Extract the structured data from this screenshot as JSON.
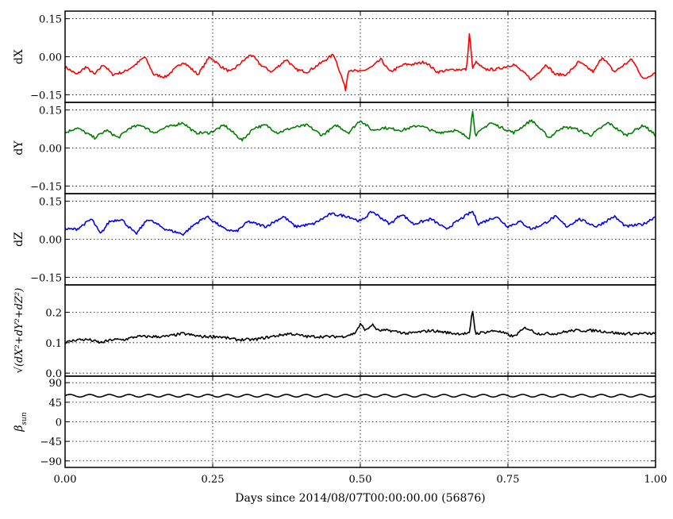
{
  "figure": {
    "xlabel": "Days since 2014/08/07T00:00:00.00 (56876)",
    "xticks": [
      "0.00",
      "0.25",
      "0.50",
      "0.75",
      "1.00"
    ],
    "xlim": [
      0.0,
      1.0
    ]
  },
  "chart_data": [
    {
      "type": "line",
      "ylabel": "dX",
      "ylim": [
        -0.18,
        0.18
      ],
      "yticks": [
        -0.15,
        0.0,
        0.15
      ],
      "ytick_labels": [
        "−0.15",
        "0.00",
        "0.15"
      ],
      "grid": true,
      "color": "#ff0000",
      "series": [
        {
          "x": [
            0.0,
            0.02,
            0.035,
            0.05,
            0.065,
            0.08,
            0.1,
            0.12,
            0.135,
            0.15,
            0.17,
            0.2,
            0.225,
            0.245,
            0.265,
            0.28,
            0.3,
            0.315,
            0.33,
            0.35,
            0.375,
            0.39,
            0.41,
            0.43,
            0.455,
            0.47,
            0.475,
            0.48,
            0.5,
            0.52,
            0.535,
            0.55,
            0.575,
            0.59,
            0.61,
            0.63,
            0.66,
            0.68,
            0.685,
            0.69,
            0.695,
            0.71,
            0.73,
            0.76,
            0.79,
            0.815,
            0.83,
            0.85,
            0.87,
            0.895,
            0.91,
            0.93,
            0.96,
            0.98,
            1.0
          ],
          "y": [
            -0.04,
            -0.07,
            -0.04,
            -0.07,
            -0.03,
            -0.07,
            -0.06,
            -0.03,
            0.0,
            -0.07,
            -0.08,
            -0.02,
            -0.07,
            0.0,
            -0.04,
            -0.06,
            -0.02,
            0.01,
            -0.03,
            -0.06,
            -0.01,
            -0.05,
            -0.06,
            -0.03,
            0.01,
            -0.09,
            -0.13,
            -0.05,
            -0.06,
            -0.04,
            -0.01,
            -0.06,
            -0.03,
            -0.03,
            -0.02,
            -0.06,
            -0.05,
            -0.05,
            0.1,
            -0.05,
            -0.02,
            -0.05,
            -0.05,
            -0.03,
            -0.09,
            -0.03,
            -0.07,
            -0.07,
            -0.02,
            -0.06,
            0.0,
            -0.06,
            -0.01,
            -0.09,
            -0.06
          ]
        }
      ]
    },
    {
      "type": "line",
      "ylabel": "dY",
      "ylim": [
        -0.18,
        0.18
      ],
      "yticks": [
        -0.15,
        0.0,
        0.15
      ],
      "ytick_labels": [
        "−0.15",
        "0.00",
        "0.15"
      ],
      "grid": true,
      "color": "#007f00",
      "series": [
        {
          "x": [
            0.0,
            0.02,
            0.035,
            0.05,
            0.07,
            0.09,
            0.11,
            0.13,
            0.15,
            0.17,
            0.2,
            0.22,
            0.245,
            0.27,
            0.3,
            0.32,
            0.34,
            0.36,
            0.385,
            0.41,
            0.435,
            0.46,
            0.48,
            0.5,
            0.52,
            0.54,
            0.57,
            0.6,
            0.63,
            0.66,
            0.685,
            0.69,
            0.695,
            0.72,
            0.76,
            0.79,
            0.82,
            0.84,
            0.86,
            0.89,
            0.92,
            0.95,
            0.98,
            1.0
          ],
          "y": [
            0.06,
            0.08,
            0.06,
            0.04,
            0.07,
            0.04,
            0.08,
            0.09,
            0.06,
            0.08,
            0.1,
            0.06,
            0.06,
            0.09,
            0.03,
            0.08,
            0.09,
            0.06,
            0.08,
            0.09,
            0.05,
            0.09,
            0.06,
            0.11,
            0.07,
            0.08,
            0.07,
            0.09,
            0.06,
            0.07,
            0.04,
            0.15,
            0.05,
            0.1,
            0.06,
            0.11,
            0.04,
            0.08,
            0.08,
            0.05,
            0.1,
            0.05,
            0.09,
            0.05
          ]
        }
      ]
    },
    {
      "type": "line",
      "ylabel": "dZ",
      "ylim": [
        -0.18,
        0.18
      ],
      "yticks": [
        -0.15,
        0.0,
        0.15
      ],
      "ytick_labels": [
        "−0.15",
        "0.00",
        "0.15"
      ],
      "grid": true,
      "color": "#0000ff",
      "series": [
        {
          "x": [
            0.0,
            0.02,
            0.045,
            0.06,
            0.075,
            0.095,
            0.12,
            0.14,
            0.17,
            0.2,
            0.22,
            0.24,
            0.27,
            0.29,
            0.31,
            0.34,
            0.37,
            0.39,
            0.42,
            0.45,
            0.48,
            0.5,
            0.52,
            0.55,
            0.57,
            0.59,
            0.62,
            0.645,
            0.67,
            0.69,
            0.7,
            0.73,
            0.75,
            0.77,
            0.79,
            0.81,
            0.83,
            0.85,
            0.87,
            0.9,
            0.93,
            0.95,
            0.98,
            1.0
          ],
          "y": [
            0.04,
            0.04,
            0.08,
            0.02,
            0.07,
            0.08,
            0.02,
            0.08,
            0.04,
            0.02,
            0.06,
            0.09,
            0.04,
            0.03,
            0.07,
            0.05,
            0.09,
            0.05,
            0.06,
            0.1,
            0.09,
            0.07,
            0.11,
            0.06,
            0.1,
            0.06,
            0.08,
            0.04,
            0.08,
            0.11,
            0.06,
            0.09,
            0.05,
            0.07,
            0.04,
            0.06,
            0.09,
            0.05,
            0.08,
            0.05,
            0.09,
            0.05,
            0.06,
            0.09
          ]
        }
      ]
    },
    {
      "type": "line",
      "ylabel": "√(dX²+dY²+dZ²)",
      "ylim": [
        -0.01,
        0.29
      ],
      "yticks": [
        0.0,
        0.1,
        0.2
      ],
      "ytick_labels": [
        "0.0",
        "0.1",
        "0.2"
      ],
      "grid": true,
      "color": "#000000",
      "series": [
        {
          "x": [
            0.0,
            0.02,
            0.04,
            0.06,
            0.08,
            0.1,
            0.12,
            0.14,
            0.17,
            0.2,
            0.23,
            0.26,
            0.29,
            0.32,
            0.35,
            0.38,
            0.41,
            0.44,
            0.47,
            0.49,
            0.5,
            0.51,
            0.52,
            0.53,
            0.55,
            0.58,
            0.62,
            0.66,
            0.685,
            0.69,
            0.695,
            0.73,
            0.76,
            0.78,
            0.8,
            0.83,
            0.86,
            0.9,
            0.94,
            0.97,
            1.0
          ],
          "y": [
            0.1,
            0.11,
            0.11,
            0.1,
            0.11,
            0.11,
            0.12,
            0.12,
            0.12,
            0.13,
            0.12,
            0.12,
            0.11,
            0.11,
            0.12,
            0.13,
            0.12,
            0.12,
            0.12,
            0.13,
            0.16,
            0.14,
            0.16,
            0.14,
            0.14,
            0.13,
            0.14,
            0.13,
            0.13,
            0.21,
            0.13,
            0.14,
            0.12,
            0.15,
            0.13,
            0.13,
            0.14,
            0.14,
            0.13,
            0.13,
            0.13
          ]
        }
      ]
    },
    {
      "type": "line",
      "ylabel": "β_sun",
      "ylim": [
        -105,
        105
      ],
      "yticks": [
        -90,
        -45,
        0,
        45,
        90
      ],
      "ytick_labels": [
        "−90",
        "−45",
        "0",
        "45",
        "90"
      ],
      "grid": true,
      "color": "#000000",
      "series": [
        {
          "x": [
            0.0,
            1.0
          ],
          "y": [
            60,
            60
          ]
        }
      ]
    }
  ]
}
